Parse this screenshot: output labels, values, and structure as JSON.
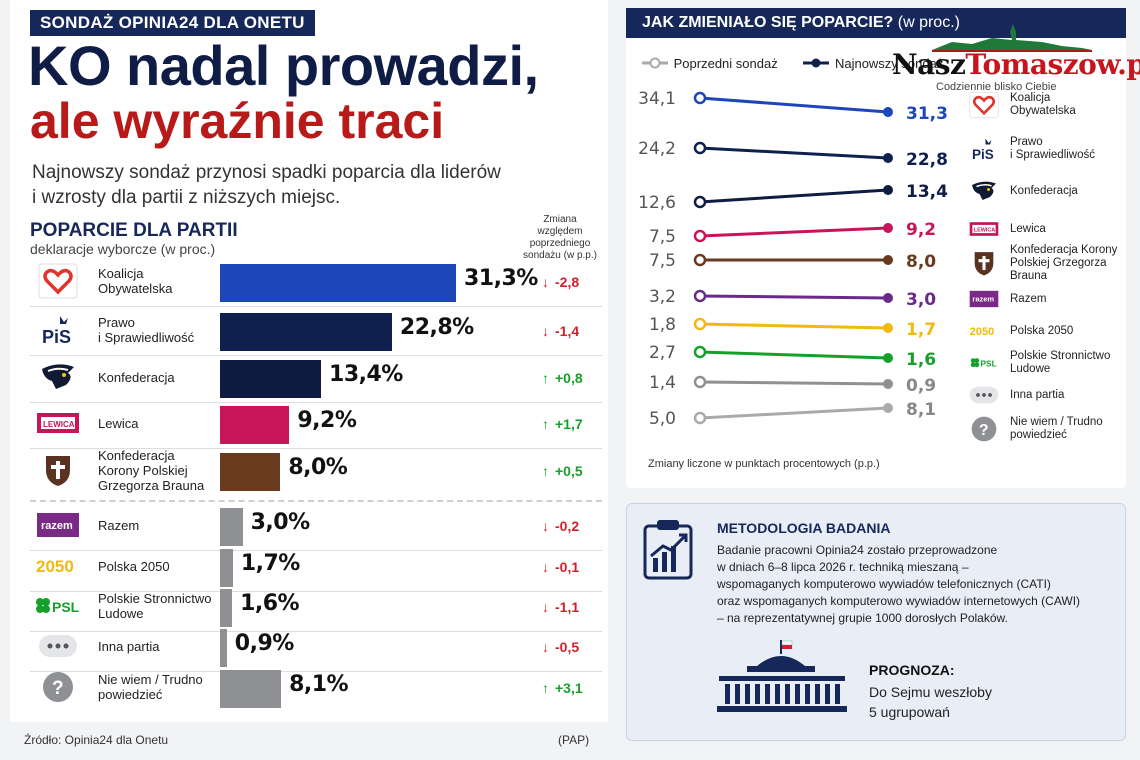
{
  "eyebrow": "SONDAŻ OPINIA24 DLA ONETU",
  "headline": {
    "line1": "KO nadal prowadzi,",
    "line2": "ale wyraźnie traci"
  },
  "lead": {
    "line1": "Najnowszy sondaż przynosi spadki poparcia dla liderów",
    "line2": "i wzrosty dla partii z niższych miejsc."
  },
  "section": {
    "title": "POPARCIE DLA PARTII",
    "subtitle": "deklaracje wyborcze (w proc.)"
  },
  "change_header": [
    "Zmiana",
    "względem",
    "poprzedniego",
    "sondażu (w p.p.)"
  ],
  "chart_data": [
    {
      "type": "bar",
      "title": "POPARCIE DLA PARTII",
      "subtitle": "deklaracje wyborcze (w proc.)",
      "unit": "%",
      "xlim": [
        0,
        31.3
      ],
      "categories": [
        "Koalicja Obywatelska",
        "Prawo i Sprawiedliwość",
        "Konfederacja",
        "Lewica",
        "Konfederacja Korony Polskiej Grzegorza Brauna",
        "Razem",
        "Polska 2050",
        "Polskie Stronnictwo Ludowe",
        "Inna partia",
        "Nie wiem / Trudno powiedzieć"
      ],
      "rows": [
        {
          "name": "Koalicja\nObywatelska",
          "value": 31.3,
          "label": "31,3%",
          "change": "-2,8",
          "dir": "down",
          "color": "#1d46b8",
          "icon": "heart-icon"
        },
        {
          "name": "Prawo\ni Sprawiedliwość",
          "value": 22.8,
          "label": "22,8%",
          "change": "-1,4",
          "dir": "down",
          "color": "#10204e",
          "icon": "pis-logo"
        },
        {
          "name": "Konfederacja",
          "value": 13.4,
          "label": "13,4%",
          "change": "+0,8",
          "dir": "up",
          "color": "#0e1c42",
          "icon": "eagle-icon"
        },
        {
          "name": "Lewica",
          "value": 9.2,
          "label": "9,2%",
          "change": "+1,7",
          "dir": "up",
          "color": "#c8155a",
          "icon": "lewica-logo"
        },
        {
          "name": "Konfederacja\nKorony Polskiej\nGrzegorza Brauna",
          "value": 8.0,
          "label": "8,0%",
          "change": "+0,5",
          "dir": "up",
          "color": "#6a3a1e",
          "icon": "shield-icon"
        },
        {
          "name": "Razem",
          "value": 3.0,
          "label": "3,0%",
          "change": "-0,2",
          "dir": "down",
          "color": "#8f9093",
          "icon": "razem-logo"
        },
        {
          "name": "Polska 2050",
          "value": 1.7,
          "label": "1,7%",
          "change": "-0,1",
          "dir": "down",
          "color": "#8f9093",
          "icon": "polska2050-logo"
        },
        {
          "name": "Polskie Stronnictwo\nLudowe",
          "value": 1.6,
          "label": "1,6%",
          "change": "-1,1",
          "dir": "down",
          "color": "#8f9093",
          "icon": "psl-logo"
        },
        {
          "name": "Inna partia",
          "value": 0.9,
          "label": "0,9%",
          "change": "-0,5",
          "dir": "down",
          "color": "#8f9093",
          "icon": "dots-icon"
        },
        {
          "name": "Nie wiem / Trudno\npowiedzieć",
          "value": 8.1,
          "label": "8,1%",
          "change": "+3,1",
          "dir": "up",
          "color": "#8f9093",
          "icon": "question-icon"
        }
      ]
    },
    {
      "type": "line",
      "title": "JAK ZMIENIAŁO SIĘ POPARCIE? (w proc.)",
      "x": [
        "Poprzedni sondaż",
        "Najnowszy sondaż"
      ],
      "series": [
        {
          "name": "Koalicja Obywatelska",
          "values": [
            34.1,
            31.3
          ],
          "labels": [
            "34,1",
            "31,3"
          ],
          "color": "#1d46b8"
        },
        {
          "name": "Prawo i Sprawiedliwość",
          "values": [
            24.2,
            22.8
          ],
          "labels": [
            "24,2",
            "22,8"
          ],
          "color": "#10204e"
        },
        {
          "name": "Konfederacja",
          "values": [
            12.6,
            13.4
          ],
          "labels": [
            "12,6",
            "13,4"
          ],
          "color": "#0e1c42"
        },
        {
          "name": "Lewica",
          "values": [
            7.5,
            9.2
          ],
          "labels": [
            "7,5",
            "9,2"
          ],
          "color": "#c8155a"
        },
        {
          "name": "Konfederacja Korony Polskiej Grzegorza Brauna",
          "values": [
            7.5,
            8.0
          ],
          "labels": [
            "7,5",
            "8,0"
          ],
          "color": "#6a3a1e"
        },
        {
          "name": "Razem",
          "values": [
            3.2,
            3.0
          ],
          "labels": [
            "3,2",
            "3,0"
          ],
          "color": "#6a2a8a"
        },
        {
          "name": "Polska 2050",
          "values": [
            1.8,
            1.7
          ],
          "labels": [
            "1,8",
            "1,7"
          ],
          "color": "#f2b90f"
        },
        {
          "name": "Polskie Stronnictwo Ludowe",
          "values": [
            2.7,
            1.6
          ],
          "labels": [
            "2,7",
            "1,6"
          ],
          "color": "#16a02a"
        },
        {
          "name": "Inna partia",
          "values": [
            1.4,
            0.9
          ],
          "labels": [
            "1,4",
            "0,9"
          ],
          "color": "#8f9093"
        },
        {
          "name": "Nie wiem / Trudno powiedzieć",
          "values": [
            5.0,
            8.1
          ],
          "labels": [
            "5,0",
            "8,1"
          ],
          "color": "#a8aaae"
        }
      ]
    }
  ],
  "right_panel": {
    "title": "JAK ZMIENIAŁO SIĘ POPARCIE?",
    "title_unit": "(w proc.)",
    "legend_prev": "Poprzedni sondaż",
    "legend_new": "Najnowszy sondaż",
    "note": "Zmiany liczone w punktach procentowych (p.p.)",
    "party_legend": [
      {
        "label": "Koalicja\nObywatelska",
        "icon": "heart-icon"
      },
      {
        "label": "Prawo\ni Sprawiedliwość",
        "icon": "pis-logo"
      },
      {
        "label": "Konfederacja",
        "icon": "eagle-icon"
      },
      {
        "label": "Lewica",
        "icon": "lewica-logo"
      },
      {
        "label": "Konfederacja Korony\nPolskiej Grzegorza Brauna",
        "icon": "shield-icon"
      },
      {
        "label": "Razem",
        "icon": "razem-logo"
      },
      {
        "label": "Polska 2050",
        "icon": "polska2050-logo"
      },
      {
        "label": "Polskie Stronnictwo\nLudowe",
        "icon": "psl-logo"
      },
      {
        "label": "Inna partia",
        "icon": "dots-icon"
      },
      {
        "label": "Nie wiem / Trudno\npowiedzieć",
        "icon": "question-icon"
      }
    ]
  },
  "site": {
    "name_a": "Nasz",
    "name_b": "Tomaszow",
    "name_c": ".pl",
    "tagline": "Codziennie blisko Ciebie"
  },
  "methodology": {
    "title": "METODOLOGIA BADANIA",
    "lines": [
      "Badanie pracowni Opinia24 zostało przeprowadzone",
      "w dniach 6–8 lipca 2026 r. techniką mieszaną –",
      "wspomaganych komputerowo wywiadów telefonicznych (CATI)",
      "oraz wspomaganych komputerowo wywiadów internetowych (CAWI)",
      "– na reprezentatywnej grupie 1000 dorosłych Polaków."
    ]
  },
  "forecast": {
    "title": "PROGNOZA:",
    "line1": "Do Sejmu weszłoby",
    "line2": "5 ugrupowań"
  },
  "footer": {
    "source": "Źródło: Opinia24 dla Onetu",
    "pap": "(PAP)"
  },
  "colors": {
    "navy": "#16275a",
    "red": "#b81a1a",
    "up": "#16a02a",
    "down": "#d0202a"
  },
  "icons": {
    "up": "↑",
    "down": "↓"
  }
}
